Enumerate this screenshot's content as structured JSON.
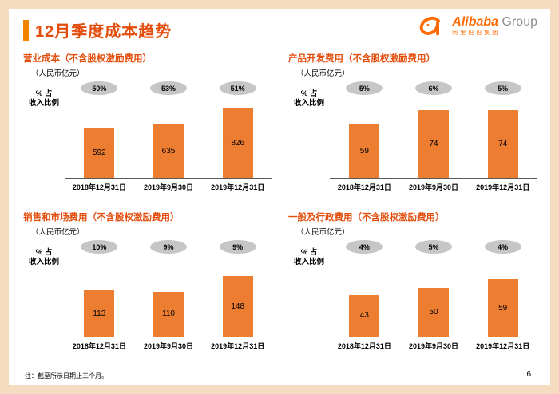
{
  "slide": {
    "title": "12月季度成本趋势",
    "footnote": "注：截至所示日期止三个月。",
    "page_number": "6"
  },
  "logo": {
    "brand": "Alibaba",
    "brand_suffix": "Group",
    "chinese_name": "阿里巴巴集团"
  },
  "colors": {
    "accent_title": "#E34D0C",
    "bar": "#ED7D31",
    "pct_oval": "#C6C6C6",
    "frame": "#F5DCC0",
    "logo_orange": "#FF6A00"
  },
  "chart_data": [
    {
      "type": "bar",
      "title": "营业成本（不含股权激励费用）",
      "unit_label": "（人民币亿元）",
      "pct_label_lines": [
        "% 占",
        "收入比例"
      ],
      "categories": [
        "2018年12月31日",
        "2019年9月30日",
        "2019年12月31日"
      ],
      "values": [
        592,
        635,
        826
      ],
      "pct_of_revenue": [
        "50%",
        "53%",
        "51%"
      ],
      "ylabel": "人民币亿元",
      "legend": "none",
      "grid": "off"
    },
    {
      "type": "bar",
      "title": "产品开发费用（不含股权激励费用）",
      "unit_label": "（人民币亿元）",
      "pct_label_lines": [
        "% 占",
        "收入比例"
      ],
      "categories": [
        "2018年12月31日",
        "2019年9月30日",
        "2019年12月31日"
      ],
      "values": [
        59,
        74,
        74
      ],
      "pct_of_revenue": [
        "5%",
        "6%",
        "5%"
      ],
      "ylabel": "人民币亿元",
      "legend": "none",
      "grid": "off"
    },
    {
      "type": "bar",
      "title": "销售和市场费用（不含股权激励费用）",
      "unit_label": "（人民币亿元）",
      "pct_label_lines": [
        "% 占",
        "收入比例"
      ],
      "categories": [
        "2018年12月31日",
        "2019年9月30日",
        "2019年12月31日"
      ],
      "values": [
        113,
        110,
        148
      ],
      "pct_of_revenue": [
        "10%",
        "9%",
        "9%"
      ],
      "ylabel": "人民币亿元",
      "legend": "none",
      "grid": "off"
    },
    {
      "type": "bar",
      "title": "一般及行政费用（不含股权激励费用）",
      "unit_label": "（人民币亿元）",
      "pct_label_lines": [
        "% 占",
        "收入比例"
      ],
      "categories": [
        "2018年12月31日",
        "2019年9月30日",
        "2019年12月31日"
      ],
      "values": [
        43,
        50,
        59
      ],
      "pct_of_revenue": [
        "4%",
        "5%",
        "4%"
      ],
      "ylabel": "人民币亿元",
      "legend": "none",
      "grid": "off"
    }
  ]
}
